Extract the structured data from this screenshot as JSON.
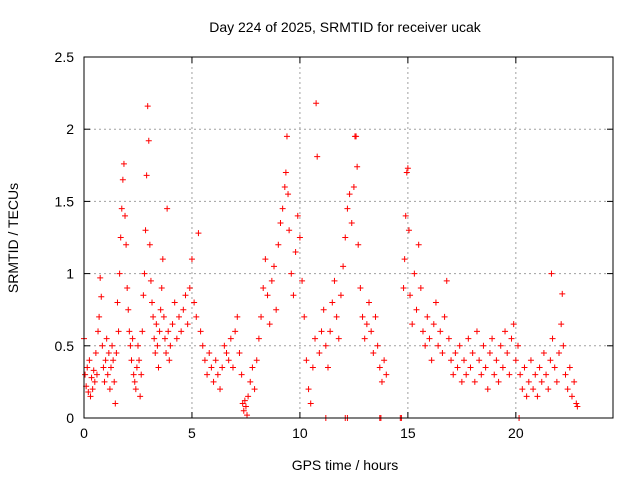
{
  "chart_data": {
    "type": "scatter",
    "title": "Day 224 of 2025, SRMTID for receiver ucak",
    "xlabel": "GPS time / hours",
    "ylabel": "SRMTID / TECUs",
    "xlim": [
      0,
      24.5
    ],
    "ylim": [
      0,
      2.5
    ],
    "xticks": [
      0,
      5,
      10,
      15,
      20
    ],
    "xtick_labels": [
      "0",
      "5",
      "10",
      "15",
      "20"
    ],
    "yticks": [
      0,
      0.5,
      1,
      1.5,
      2,
      2.5
    ],
    "ytick_labels": [
      "0",
      "0.5",
      "1",
      "1.5",
      "2",
      "2.5"
    ],
    "grid": true,
    "marker": "+",
    "color": "#ff0000",
    "series": [
      {
        "name": "SRMTID",
        "points": [
          [
            0.0,
            0.55
          ],
          [
            0.05,
            0.3
          ],
          [
            0.1,
            0.22
          ],
          [
            0.15,
            0.35
          ],
          [
            0.2,
            0.18
          ],
          [
            0.25,
            0.4
          ],
          [
            0.3,
            0.15
          ],
          [
            0.35,
            0.28
          ],
          [
            0.4,
            0.2
          ],
          [
            0.45,
            0.33
          ],
          [
            0.5,
            0.25
          ],
          [
            0.55,
            0.45
          ],
          [
            0.6,
            0.3
          ],
          [
            0.65,
            0.6
          ],
          [
            0.7,
            0.7
          ],
          [
            0.75,
            0.97
          ],
          [
            0.8,
            0.84
          ],
          [
            0.85,
            0.5
          ],
          [
            0.9,
            0.35
          ],
          [
            0.95,
            0.25
          ],
          [
            1.0,
            0.4
          ],
          [
            1.05,
            0.55
          ],
          [
            1.1,
            0.3
          ],
          [
            1.15,
            0.45
          ],
          [
            1.2,
            0.2
          ],
          [
            1.25,
            0.35
          ],
          [
            1.3,
            0.5
          ],
          [
            1.35,
            0.4
          ],
          [
            1.4,
            0.25
          ],
          [
            1.45,
            0.1
          ],
          [
            1.5,
            0.45
          ],
          [
            1.55,
            0.8
          ],
          [
            1.6,
            0.6
          ],
          [
            1.65,
            1.0
          ],
          [
            1.7,
            1.25
          ],
          [
            1.75,
            1.45
          ],
          [
            1.8,
            1.65
          ],
          [
            1.85,
            1.76
          ],
          [
            1.9,
            1.4
          ],
          [
            1.95,
            1.2
          ],
          [
            2.0,
            0.9
          ],
          [
            2.05,
            0.75
          ],
          [
            2.1,
            0.6
          ],
          [
            2.15,
            0.5
          ],
          [
            2.2,
            0.4
          ],
          [
            2.25,
            0.55
          ],
          [
            2.3,
            0.3
          ],
          [
            2.35,
            0.25
          ],
          [
            2.4,
            0.2
          ],
          [
            2.45,
            0.35
          ],
          [
            2.5,
            0.5
          ],
          [
            2.55,
            0.4
          ],
          [
            2.6,
            0.15
          ],
          [
            2.65,
            0.3
          ],
          [
            2.7,
            0.6
          ],
          [
            2.75,
            0.85
          ],
          [
            2.8,
            1.0
          ],
          [
            2.85,
            1.3
          ],
          [
            2.9,
            1.68
          ],
          [
            2.95,
            2.16
          ],
          [
            3.0,
            1.92
          ],
          [
            3.05,
            1.2
          ],
          [
            3.1,
            0.95
          ],
          [
            3.15,
            0.8
          ],
          [
            3.2,
            0.7
          ],
          [
            3.25,
            0.55
          ],
          [
            3.3,
            0.45
          ],
          [
            3.35,
            0.65
          ],
          [
            3.4,
            0.5
          ],
          [
            3.45,
            0.35
          ],
          [
            3.5,
            0.6
          ],
          [
            3.55,
            0.75
          ],
          [
            3.6,
            0.9
          ],
          [
            3.65,
            1.1
          ],
          [
            3.7,
            0.7
          ],
          [
            3.75,
            0.55
          ],
          [
            3.8,
            0.45
          ],
          [
            3.85,
            1.45
          ],
          [
            3.9,
            0.6
          ],
          [
            3.95,
            0.4
          ],
          [
            4.0,
            0.5
          ],
          [
            4.1,
            0.65
          ],
          [
            4.2,
            0.8
          ],
          [
            4.3,
            0.55
          ],
          [
            4.4,
            0.7
          ],
          [
            4.5,
            0.6
          ],
          [
            4.6,
            0.75
          ],
          [
            4.7,
            0.85
          ],
          [
            4.8,
            0.65
          ],
          [
            4.9,
            0.9
          ],
          [
            5.0,
            1.1
          ],
          [
            5.1,
            0.8
          ],
          [
            5.2,
            0.7
          ],
          [
            5.3,
            1.28
          ],
          [
            5.4,
            0.6
          ],
          [
            5.5,
            0.5
          ],
          [
            5.6,
            0.4
          ],
          [
            5.7,
            0.3
          ],
          [
            5.8,
            0.45
          ],
          [
            5.9,
            0.35
          ],
          [
            6.0,
            0.25
          ],
          [
            6.1,
            0.4
          ],
          [
            6.2,
            0.3
          ],
          [
            6.3,
            0.2
          ],
          [
            6.4,
            0.35
          ],
          [
            6.5,
            0.5
          ],
          [
            6.6,
            0.45
          ],
          [
            6.7,
            0.4
          ],
          [
            6.8,
            0.55
          ],
          [
            6.9,
            0.35
          ],
          [
            7.0,
            0.6
          ],
          [
            7.1,
            0.7
          ],
          [
            7.2,
            0.45
          ],
          [
            7.3,
            0.3
          ],
          [
            7.35,
            0.1
          ],
          [
            7.4,
            0.05
          ],
          [
            7.45,
            0.12
          ],
          [
            7.5,
            0.08
          ],
          [
            7.55,
            0.02
          ],
          [
            7.6,
            0.15
          ],
          [
            7.7,
            0.25
          ],
          [
            7.8,
            0.35
          ],
          [
            7.9,
            0.2
          ],
          [
            8.0,
            0.4
          ],
          [
            8.1,
            0.55
          ],
          [
            8.2,
            0.7
          ],
          [
            8.3,
            0.9
          ],
          [
            8.4,
            1.1
          ],
          [
            8.5,
            0.85
          ],
          [
            8.6,
            0.65
          ],
          [
            8.7,
            0.95
          ],
          [
            8.8,
            1.05
          ],
          [
            8.9,
            0.75
          ],
          [
            9.0,
            1.2
          ],
          [
            9.1,
            1.35
          ],
          [
            9.2,
            1.45
          ],
          [
            9.3,
            1.6
          ],
          [
            9.35,
            1.7
          ],
          [
            9.4,
            1.95
          ],
          [
            9.45,
            1.55
          ],
          [
            9.5,
            1.3
          ],
          [
            9.6,
            1.0
          ],
          [
            9.7,
            0.85
          ],
          [
            9.8,
            1.15
          ],
          [
            9.9,
            1.4
          ],
          [
            10.0,
            1.25
          ],
          [
            10.1,
            0.95
          ],
          [
            10.2,
            0.7
          ],
          [
            10.3,
            0.4
          ],
          [
            10.4,
            0.2
          ],
          [
            10.5,
            0.1
          ],
          [
            10.6,
            0.35
          ],
          [
            10.7,
            0.55
          ],
          [
            10.75,
            2.18
          ],
          [
            10.8,
            1.81
          ],
          [
            10.9,
            0.45
          ],
          [
            11.0,
            0.6
          ],
          [
            11.1,
            0.75
          ],
          [
            11.2,
            0.5
          ],
          [
            11.3,
            0.35
          ],
          [
            11.4,
            0.6
          ],
          [
            11.5,
            0.8
          ],
          [
            11.6,
            0.95
          ],
          [
            11.7,
            0.7
          ],
          [
            11.8,
            0.55
          ],
          [
            11.9,
            0.85
          ],
          [
            12.0,
            1.05
          ],
          [
            12.1,
            1.25
          ],
          [
            12.2,
            1.45
          ],
          [
            12.3,
            1.55
          ],
          [
            12.4,
            1.35
          ],
          [
            12.5,
            1.6
          ],
          [
            12.55,
            1.95
          ],
          [
            12.6,
            1.95
          ],
          [
            12.65,
            1.74
          ],
          [
            12.7,
            1.2
          ],
          [
            12.8,
            0.9
          ],
          [
            12.9,
            0.7
          ],
          [
            13.0,
            0.55
          ],
          [
            13.1,
            0.65
          ],
          [
            13.2,
            0.8
          ],
          [
            13.3,
            0.6
          ],
          [
            13.4,
            0.45
          ],
          [
            13.5,
            0.7
          ],
          [
            13.6,
            0.5
          ],
          [
            13.7,
            0.35
          ],
          [
            13.8,
            0.25
          ],
          [
            13.9,
            0.4
          ],
          [
            14.0,
            0.3
          ],
          [
            14.8,
            0.9
          ],
          [
            14.85,
            1.1
          ],
          [
            14.9,
            1.4
          ],
          [
            14.95,
            1.7
          ],
          [
            15.0,
            1.73
          ],
          [
            15.05,
            1.3
          ],
          [
            15.1,
            0.85
          ],
          [
            15.2,
            0.65
          ],
          [
            15.3,
            1.0
          ],
          [
            15.4,
            0.75
          ],
          [
            15.5,
            1.2
          ],
          [
            15.6,
            0.9
          ],
          [
            15.7,
            0.6
          ],
          [
            15.8,
            0.5
          ],
          [
            15.9,
            0.7
          ],
          [
            16.0,
            0.55
          ],
          [
            16.1,
            0.4
          ],
          [
            16.2,
            0.65
          ],
          [
            16.3,
            0.8
          ],
          [
            16.4,
            0.5
          ],
          [
            16.5,
            0.6
          ],
          [
            16.6,
            0.45
          ],
          [
            16.7,
            0.7
          ],
          [
            16.8,
            0.95
          ],
          [
            16.9,
            0.55
          ],
          [
            17.0,
            0.4
          ],
          [
            17.1,
            0.3
          ],
          [
            17.2,
            0.45
          ],
          [
            17.3,
            0.35
          ],
          [
            17.4,
            0.5
          ],
          [
            17.5,
            0.25
          ],
          [
            17.6,
            0.4
          ],
          [
            17.7,
            0.3
          ],
          [
            17.8,
            0.55
          ],
          [
            17.9,
            0.35
          ],
          [
            18.0,
            0.45
          ],
          [
            18.1,
            0.25
          ],
          [
            18.2,
            0.6
          ],
          [
            18.3,
            0.4
          ],
          [
            18.4,
            0.3
          ],
          [
            18.5,
            0.5
          ],
          [
            18.6,
            0.35
          ],
          [
            18.7,
            0.2
          ],
          [
            18.8,
            0.45
          ],
          [
            18.9,
            0.55
          ],
          [
            19.0,
            0.3
          ],
          [
            19.1,
            0.4
          ],
          [
            19.2,
            0.25
          ],
          [
            19.3,
            0.5
          ],
          [
            19.4,
            0.35
          ],
          [
            19.5,
            0.6
          ],
          [
            19.6,
            0.45
          ],
          [
            19.7,
            0.3
          ],
          [
            19.8,
            0.55
          ],
          [
            19.9,
            0.65
          ],
          [
            20.0,
            0.4
          ],
          [
            20.1,
            0.5
          ],
          [
            20.2,
            0.3
          ],
          [
            20.3,
            0.2
          ],
          [
            20.4,
            0.35
          ],
          [
            20.5,
            0.15
          ],
          [
            20.6,
            0.25
          ],
          [
            20.7,
            0.4
          ],
          [
            20.8,
            0.2
          ],
          [
            20.9,
            0.3
          ],
          [
            21.0,
            0.15
          ],
          [
            21.1,
            0.35
          ],
          [
            21.2,
            0.25
          ],
          [
            21.3,
            0.45
          ],
          [
            21.4,
            0.3
          ],
          [
            21.5,
            0.2
          ],
          [
            21.6,
            0.4
          ],
          [
            21.65,
            1.0
          ],
          [
            21.7,
            0.55
          ],
          [
            21.8,
            0.35
          ],
          [
            21.9,
            0.25
          ],
          [
            22.0,
            0.45
          ],
          [
            22.1,
            0.65
          ],
          [
            22.15,
            0.86
          ],
          [
            22.2,
            0.5
          ],
          [
            22.3,
            0.3
          ],
          [
            22.4,
            0.2
          ],
          [
            22.5,
            0.35
          ],
          [
            22.6,
            0.15
          ],
          [
            22.7,
            0.25
          ],
          [
            22.8,
            0.1
          ],
          [
            22.85,
            0.08
          ],
          [
            12.1,
            0.0
          ],
          [
            12.2,
            0.0
          ],
          [
            13.7,
            0.0
          ],
          [
            13.75,
            0.0
          ],
          [
            14.65,
            0.0
          ],
          [
            14.7,
            0.0
          ],
          [
            20.15,
            0.0
          ],
          [
            11.2,
            0.0
          ]
        ]
      }
    ]
  }
}
